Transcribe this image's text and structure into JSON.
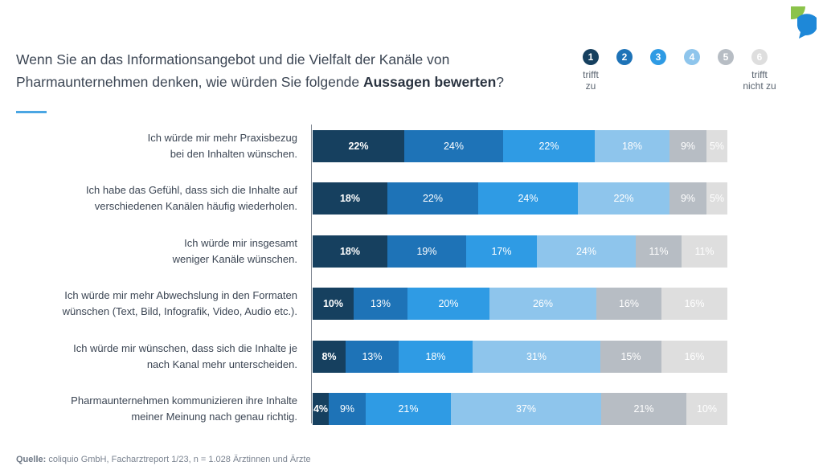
{
  "title": {
    "part1": "Wenn Sie an das Informationsangebot und die Vielfalt der Kanäle von",
    "part2": "Pharmaunternehmen denken, wie würden Sie folgende ",
    "bold": "Aussagen bewerten",
    "end": "?"
  },
  "scale": {
    "points": [
      "1",
      "2",
      "3",
      "4",
      "5",
      "6"
    ],
    "left_caption_1": "trifft",
    "left_caption_2": "zu",
    "right_caption_1": "trifft",
    "right_caption_2": "nicht zu"
  },
  "source": {
    "label": "Quelle:",
    "text": " coliquio GmbH, Facharztreport 1/23, n = 1.028 Ärztinnen und Ärzte"
  },
  "colors": {
    "c1": "#16405f",
    "c2": "#1e73b7",
    "c3": "#2f9be4",
    "c4": "#8ec5ec",
    "c5": "#b7bdc4",
    "c6": "#dedede",
    "text_dark_on_light": "#ffffff",
    "logo_green": "#8bc34a",
    "logo_blue": "#1e88d8"
  },
  "chart_data": {
    "type": "bar",
    "orientation": "horizontal",
    "stacked": true,
    "unit": "%",
    "categories": [
      "Ich würde mir mehr Praxisbezug bei den Inhalten wünschen.",
      "Ich habe das Gefühl, dass sich die Inhalte auf verschiedenen Kanälen häufig wiederholen.",
      "Ich würde mir insgesamt weniger Kanäle wünschen.",
      "Ich würde mir mehr Abwechslung in den Formaten wünschen (Text, Bild, Infografik, Video, Audio etc.).",
      "Ich würde mir wünschen, dass sich die Inhalte je nach Kanal mehr unterscheiden.",
      "Pharmaunternehmen kommunizieren ihre Inhalte meiner Meinung nach genau richtig."
    ],
    "category_lines": [
      [
        "Ich würde mir mehr Praxisbezug",
        "bei den Inhalten wünschen."
      ],
      [
        "Ich habe das Gefühl, dass sich die Inhalte auf",
        "verschiedenen Kanälen häufig wiederholen."
      ],
      [
        "Ich würde mir insgesamt",
        "weniger Kanäle wünschen."
      ],
      [
        "Ich würde mir mehr Abwechslung in den Formaten",
        "wünschen (Text, Bild, Infografik, Video, Audio etc.)."
      ],
      [
        "Ich würde mir wünschen, dass sich die Inhalte je",
        "nach Kanal mehr unterscheiden."
      ],
      [
        "Pharmaunternehmen kommunizieren ihre Inhalte",
        "meiner Meinung nach genau richtig."
      ]
    ],
    "series": [
      {
        "name": "1",
        "values": [
          22,
          18,
          18,
          10,
          8,
          4
        ]
      },
      {
        "name": "2",
        "values": [
          24,
          22,
          19,
          13,
          13,
          9
        ]
      },
      {
        "name": "3",
        "values": [
          22,
          24,
          17,
          20,
          18,
          21
        ]
      },
      {
        "name": "4",
        "values": [
          18,
          22,
          24,
          26,
          31,
          37
        ]
      },
      {
        "name": "5",
        "values": [
          9,
          9,
          11,
          16,
          15,
          21
        ]
      },
      {
        "name": "6",
        "values": [
          5,
          5,
          11,
          16,
          16,
          10
        ]
      }
    ],
    "xlim": [
      0,
      100
    ],
    "grid": false,
    "legend": "top-right"
  }
}
